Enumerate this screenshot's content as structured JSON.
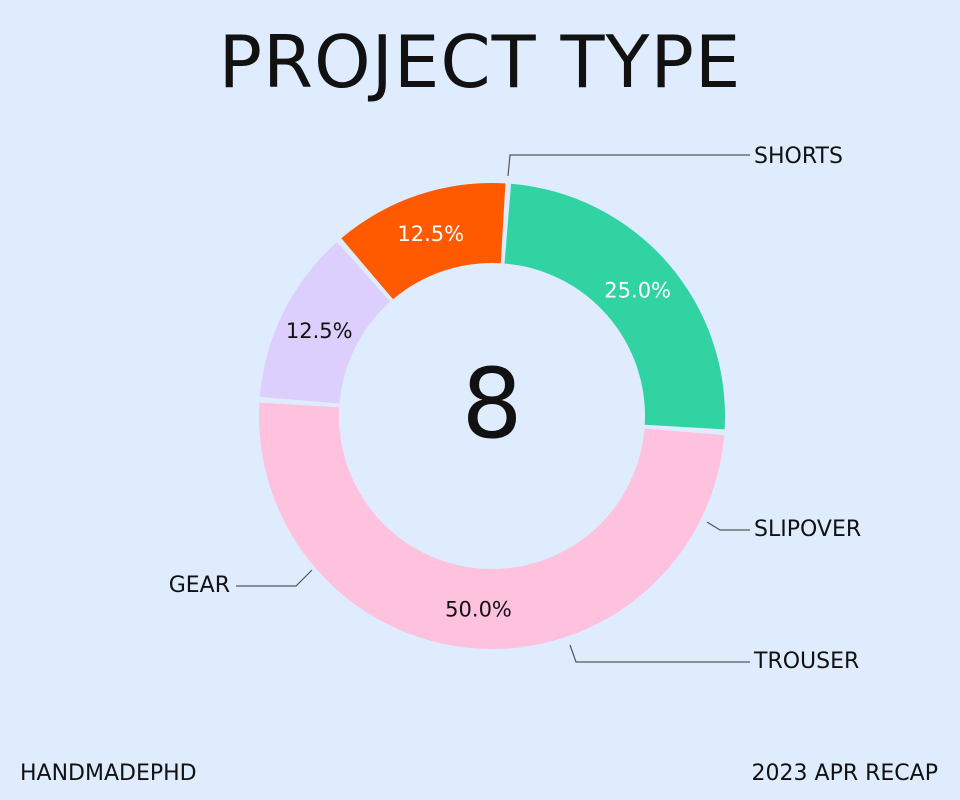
{
  "chart_data": {
    "type": "pie",
    "title": "PROJECT TYPE",
    "center_label": "8",
    "slices": [
      {
        "name": "SHORTS",
        "value": 50.0,
        "label": "50.0%",
        "color": "#ffc2de",
        "label_color": "#111111"
      },
      {
        "name": "SLIPOVER",
        "value": 12.5,
        "label": "12.5%",
        "color": "#dccffe",
        "label_color": "#111111"
      },
      {
        "name": "TROUSER",
        "value": 12.5,
        "label": "12.5%",
        "color": "#ff5a00",
        "label_color": "#ffffff"
      },
      {
        "name": "GEAR",
        "value": 25.0,
        "label": "25.0%",
        "color": "#32d3a2",
        "label_color": "#ffffff"
      }
    ]
  },
  "footer": {
    "left": "HANDMADEPHD",
    "right": "2023 APR RECAP"
  },
  "colors": {
    "background": "#dfecfe",
    "text": "#111111",
    "leader_line": "#555555"
  }
}
